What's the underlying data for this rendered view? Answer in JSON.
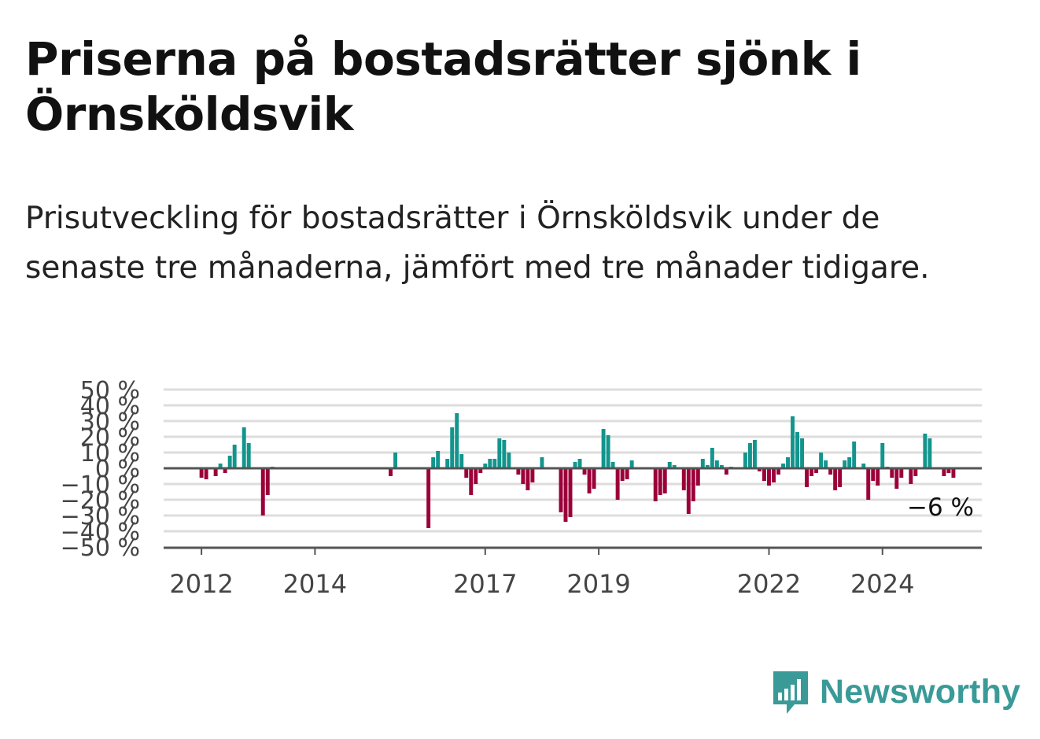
{
  "header": {
    "title": "Priserna på bostadsrätter sjönk i Örnsköldsvik",
    "subtitle": "Prisutveckling för bostadsrätter i Örnsköldsvik under de senaste tre månaderna, jämfört med tre månader tidigare."
  },
  "brand": {
    "name": "Newsworthy",
    "color": "#3a9a97",
    "logo_icon": "bar-chart-speech-bubble-icon"
  },
  "colors": {
    "positive": "#12958d",
    "negative": "#9b0039",
    "grid": "#dddddd",
    "zero_line": "#555555"
  },
  "chart_data": {
    "type": "bar",
    "title": "",
    "xlabel": "",
    "ylabel": "",
    "unit": "%",
    "ylim": [
      -50,
      50
    ],
    "yticks": [
      -50,
      -40,
      -30,
      -20,
      -10,
      0,
      10,
      20,
      30,
      40,
      50
    ],
    "ytick_labels": [
      "−50 %",
      "−40 %",
      "−30 %",
      "−20 %",
      "−10 %",
      "0 %",
      "10 %",
      "20 %",
      "30 %",
      "40 %",
      "50 %"
    ],
    "xlim": [
      "2011-05",
      "2025-10"
    ],
    "xticks": [
      {
        "label": "2012",
        "date": "2012-01"
      },
      {
        "label": "2014",
        "date": "2014-01"
      },
      {
        "label": "2017",
        "date": "2017-01"
      },
      {
        "label": "2019",
        "date": "2019-01"
      },
      {
        "label": "2022",
        "date": "2022-01"
      },
      {
        "label": "2024",
        "date": "2024-01"
      }
    ],
    "grid": true,
    "last_value_label": "−6 %",
    "series": [
      {
        "points": [
          {
            "x": "2012-01",
            "y": -6
          },
          {
            "x": "2012-02",
            "y": -7
          },
          {
            "x": "2012-04",
            "y": -5
          },
          {
            "x": "2012-05",
            "y": 3
          },
          {
            "x": "2012-06",
            "y": -3
          },
          {
            "x": "2012-07",
            "y": 8
          },
          {
            "x": "2012-08",
            "y": 15
          },
          {
            "x": "2012-10",
            "y": 26
          },
          {
            "x": "2012-11",
            "y": 16
          },
          {
            "x": "2013-02",
            "y": -30
          },
          {
            "x": "2013-03",
            "y": -17
          },
          {
            "x": "2013-04",
            "y": 1
          },
          {
            "x": "2015-05",
            "y": -5
          },
          {
            "x": "2015-06",
            "y": 10
          },
          {
            "x": "2016-01",
            "y": -38
          },
          {
            "x": "2016-02",
            "y": 7
          },
          {
            "x": "2016-03",
            "y": 11
          },
          {
            "x": "2016-05",
            "y": 6
          },
          {
            "x": "2016-06",
            "y": 26
          },
          {
            "x": "2016-07",
            "y": 35
          },
          {
            "x": "2016-08",
            "y": 9
          },
          {
            "x": "2016-09",
            "y": -6
          },
          {
            "x": "2016-10",
            "y": -17
          },
          {
            "x": "2016-11",
            "y": -10
          },
          {
            "x": "2016-12",
            "y": -3
          },
          {
            "x": "2017-01",
            "y": 3
          },
          {
            "x": "2017-02",
            "y": 6
          },
          {
            "x": "2017-03",
            "y": 6
          },
          {
            "x": "2017-04",
            "y": 19
          },
          {
            "x": "2017-05",
            "y": 18
          },
          {
            "x": "2017-06",
            "y": 10
          },
          {
            "x": "2017-08",
            "y": -4
          },
          {
            "x": "2017-09",
            "y": -10
          },
          {
            "x": "2017-10",
            "y": -14
          },
          {
            "x": "2017-11",
            "y": -9
          },
          {
            "x": "2018-01",
            "y": 7
          },
          {
            "x": "2018-05",
            "y": -28
          },
          {
            "x": "2018-06",
            "y": -34
          },
          {
            "x": "2018-07",
            "y": -31
          },
          {
            "x": "2018-08",
            "y": 4
          },
          {
            "x": "2018-09",
            "y": 6
          },
          {
            "x": "2018-10",
            "y": -4
          },
          {
            "x": "2018-11",
            "y": -16
          },
          {
            "x": "2018-12",
            "y": -13
          },
          {
            "x": "2019-02",
            "y": 25
          },
          {
            "x": "2019-03",
            "y": 21
          },
          {
            "x": "2019-04",
            "y": 4
          },
          {
            "x": "2019-05",
            "y": -20
          },
          {
            "x": "2019-06",
            "y": -8
          },
          {
            "x": "2019-07",
            "y": -7
          },
          {
            "x": "2019-08",
            "y": 5
          },
          {
            "x": "2020-01",
            "y": -21
          },
          {
            "x": "2020-02",
            "y": -17
          },
          {
            "x": "2020-03",
            "y": -16
          },
          {
            "x": "2020-04",
            "y": 4
          },
          {
            "x": "2020-05",
            "y": 2
          },
          {
            "x": "2020-07",
            "y": -14
          },
          {
            "x": "2020-08",
            "y": -29
          },
          {
            "x": "2020-09",
            "y": -21
          },
          {
            "x": "2020-10",
            "y": -11
          },
          {
            "x": "2020-11",
            "y": 6
          },
          {
            "x": "2020-12",
            "y": 2
          },
          {
            "x": "2021-01",
            "y": 13
          },
          {
            "x": "2021-02",
            "y": 5
          },
          {
            "x": "2021-03",
            "y": 2
          },
          {
            "x": "2021-04",
            "y": -4
          },
          {
            "x": "2021-05",
            "y": 1
          },
          {
            "x": "2021-08",
            "y": 10
          },
          {
            "x": "2021-09",
            "y": 16
          },
          {
            "x": "2021-10",
            "y": 18
          },
          {
            "x": "2021-11",
            "y": -2
          },
          {
            "x": "2021-12",
            "y": -8
          },
          {
            "x": "2022-01",
            "y": -11
          },
          {
            "x": "2022-02",
            "y": -9
          },
          {
            "x": "2022-03",
            "y": -4
          },
          {
            "x": "2022-04",
            "y": 3
          },
          {
            "x": "2022-05",
            "y": 7
          },
          {
            "x": "2022-06",
            "y": 33
          },
          {
            "x": "2022-07",
            "y": 23
          },
          {
            "x": "2022-08",
            "y": 19
          },
          {
            "x": "2022-09",
            "y": -12
          },
          {
            "x": "2022-10",
            "y": -5
          },
          {
            "x": "2022-11",
            "y": -3
          },
          {
            "x": "2022-12",
            "y": 10
          },
          {
            "x": "2023-01",
            "y": 5
          },
          {
            "x": "2023-02",
            "y": -4
          },
          {
            "x": "2023-03",
            "y": -14
          },
          {
            "x": "2023-04",
            "y": -12
          },
          {
            "x": "2023-05",
            "y": 5
          },
          {
            "x": "2023-06",
            "y": 7
          },
          {
            "x": "2023-07",
            "y": 17
          },
          {
            "x": "2023-09",
            "y": 3
          },
          {
            "x": "2023-10",
            "y": -20
          },
          {
            "x": "2023-11",
            "y": -8
          },
          {
            "x": "2023-12",
            "y": -11
          },
          {
            "x": "2024-01",
            "y": 16
          },
          {
            "x": "2024-02",
            "y": 1
          },
          {
            "x": "2024-03",
            "y": -6
          },
          {
            "x": "2024-04",
            "y": -13
          },
          {
            "x": "2024-05",
            "y": -6
          },
          {
            "x": "2024-07",
            "y": -10
          },
          {
            "x": "2024-08",
            "y": -5
          },
          {
            "x": "2024-10",
            "y": 22
          },
          {
            "x": "2024-11",
            "y": 19
          },
          {
            "x": "2025-02",
            "y": -5
          },
          {
            "x": "2025-03",
            "y": -3
          },
          {
            "x": "2025-04",
            "y": -6
          }
        ]
      }
    ]
  }
}
